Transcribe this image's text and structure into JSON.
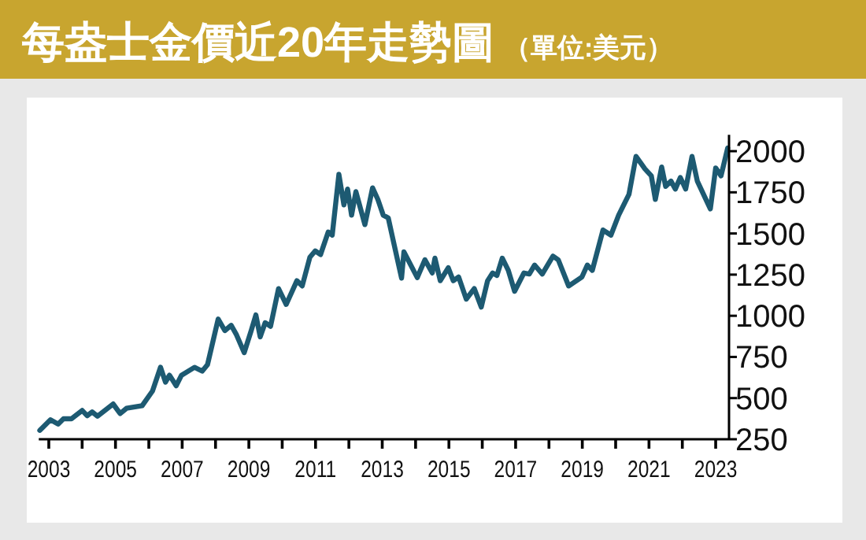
{
  "chart_data": {
    "type": "line",
    "title": "每盎士金價近20年走勢圖",
    "subtitle": "（單位:美元）",
    "x": [
      2002.73,
      2003.05,
      2003.28,
      2003.44,
      2003.68,
      2004.0,
      2004.15,
      2004.3,
      2004.46,
      2004.93,
      2005.14,
      2005.33,
      2005.8,
      2006.11,
      2006.35,
      2006.5,
      2006.62,
      2006.82,
      2006.98,
      2007.37,
      2007.6,
      2007.76,
      2008.08,
      2008.28,
      2008.47,
      2008.63,
      2008.86,
      2009.07,
      2009.21,
      2009.34,
      2009.49,
      2009.65,
      2009.89,
      2010.12,
      2010.44,
      2010.6,
      2010.83,
      2010.99,
      2011.15,
      2011.38,
      2011.5,
      2011.7,
      2011.85,
      2011.96,
      2012.08,
      2012.21,
      2012.48,
      2012.71,
      2012.87,
      2013.03,
      2013.18,
      2013.37,
      2013.58,
      2013.65,
      2014.05,
      2014.28,
      2014.5,
      2014.58,
      2014.74,
      2014.98,
      2015.13,
      2015.29,
      2015.52,
      2015.76,
      2015.97,
      2016.16,
      2016.31,
      2016.44,
      2016.6,
      2016.78,
      2016.97,
      2017.25,
      2017.41,
      2017.57,
      2017.8,
      2018.12,
      2018.28,
      2018.59,
      2018.99,
      2019.15,
      2019.3,
      2019.62,
      2019.86,
      2020.09,
      2020.4,
      2020.61,
      2020.88,
      2021.07,
      2021.19,
      2021.38,
      2021.5,
      2021.66,
      2021.79,
      2021.94,
      2022.1,
      2022.29,
      2022.45,
      2022.84,
      2023.0,
      2023.16,
      2023.36
    ],
    "series": [
      {
        "color": "#1d5a72",
        "values": [
          304,
          368,
          342,
          374,
          374,
          425,
          393,
          416,
          390,
          464,
          406,
          438,
          454,
          543,
          687,
          597,
          639,
          575,
          639,
          687,
          664,
          703,
          980,
          910,
          942,
          884,
          776,
          910,
          1005,
          872,
          958,
          936,
          1165,
          1069,
          1213,
          1181,
          1356,
          1394,
          1372,
          1509,
          1490,
          1859,
          1674,
          1770,
          1611,
          1754,
          1554,
          1777,
          1706,
          1611,
          1595,
          1420,
          1229,
          1388,
          1232,
          1340,
          1260,
          1350,
          1213,
          1292,
          1213,
          1236,
          1101,
          1165,
          1053,
          1213,
          1260,
          1245,
          1350,
          1276,
          1149,
          1260,
          1254,
          1308,
          1254,
          1362,
          1340,
          1181,
          1236,
          1308,
          1276,
          1521,
          1490,
          1611,
          1738,
          1968,
          1892,
          1850,
          1707,
          1904,
          1786,
          1818,
          1770,
          1840,
          1770,
          1968,
          1818,
          1649,
          1898,
          1850,
          2019
        ]
      }
    ],
    "xlim": [
      2002.7,
      2023.4
    ],
    "ylim": [
      250,
      2100
    ],
    "xticks": [
      2003,
      {
        "value": 2004,
        "label": null
      },
      2005,
      {
        "value": 2006,
        "label": null
      },
      2007,
      {
        "value": 2008,
        "label": null
      },
      2009,
      {
        "value": 2010,
        "label": null
      },
      2011,
      {
        "value": 2012,
        "label": null
      },
      2013,
      {
        "value": 2014,
        "label": null
      },
      2015,
      {
        "value": 2016,
        "label": null
      },
      2017,
      {
        "value": 2018,
        "label": null
      },
      2019,
      {
        "value": 2020,
        "label": null
      },
      2021,
      {
        "value": 2022,
        "label": null
      },
      2023
    ],
    "yticks": [
      250,
      500,
      750,
      1000,
      1250,
      1500,
      1750,
      2000
    ],
    "grid": false,
    "marker": "none",
    "line_style": "solid"
  }
}
